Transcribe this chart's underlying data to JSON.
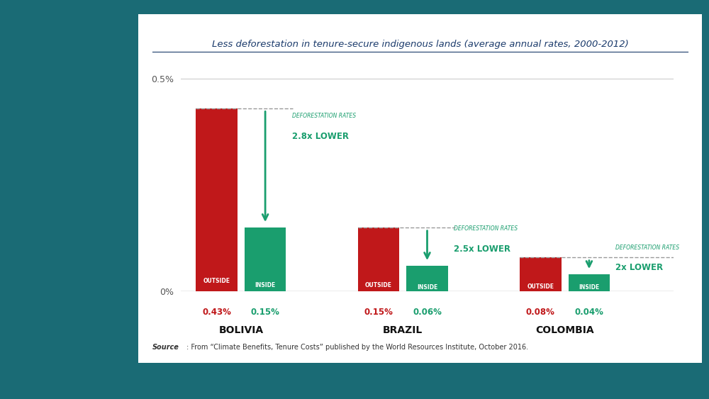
{
  "title": "Less deforestation in tenure-secure indigenous lands (average annual rates, 2000-2012)",
  "countries": [
    "BOLIVIA",
    "BRAZIL",
    "COLOMBIA"
  ],
  "outside_values": [
    0.43,
    0.15,
    0.08
  ],
  "inside_values": [
    0.15,
    0.06,
    0.04
  ],
  "outside_labels": [
    "0.43%",
    "0.15%",
    "0.08%"
  ],
  "inside_labels": [
    "0.15%",
    "0.06%",
    "0.04%"
  ],
  "bar_color_outside": "#c0181a",
  "bar_color_inside": "#1a9e6e",
  "annotation_color": "#1a9e6e",
  "arrow_color": "#1a9e6e",
  "dashed_line_color": "#999999",
  "lower_texts": [
    "2.8x LOWER",
    "2.5x LOWER",
    "2x LOWER"
  ],
  "lower_labels": [
    "DEFORESTATION RATES",
    "DEFORESTATION RATES",
    "DEFORESTATION RATES"
  ],
  "source_bold": "Source",
  "source_rest": ": From “Climate Benefits, Tenure Costs” published by the World Resources Institute, October 2016.",
  "outer_bg": "#1a6b75",
  "panel_bg": "#ffffff",
  "title_color": "#1a3a6b",
  "country_label_color": "#111111",
  "outside_text_color": "#c0181a",
  "inside_text_color": "#1a9e6e",
  "bar_width": 0.18,
  "group_centers": [
    0.38,
    1.08,
    1.78
  ],
  "bar_gap": 0.03,
  "xlim": [
    0.1,
    2.3
  ],
  "ylim_data": 0.5,
  "ylim_display": 0.52
}
